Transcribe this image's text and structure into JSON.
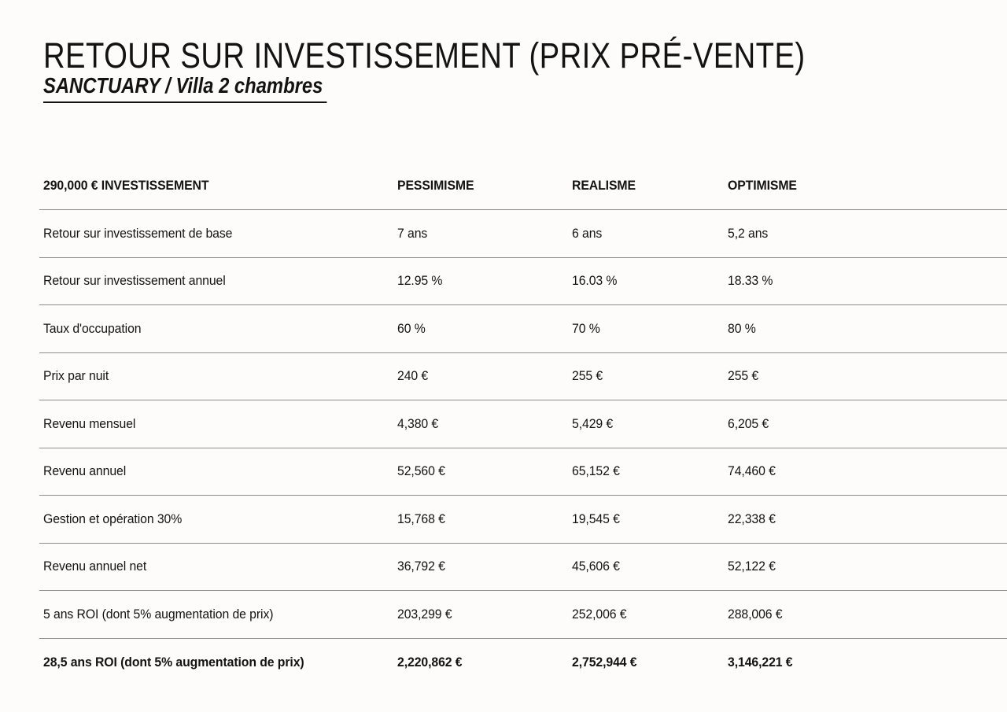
{
  "theme": {
    "bg": "#fdfcfa",
    "ink": "#131313",
    "line": "#8e8e8e"
  },
  "page": {
    "title": "RETOUR SUR INVESTISSEMENT (PRIX PRÉ-VENTE)",
    "subtitle": "SANCTUARY / Villa 2 chambres"
  },
  "table": {
    "columns": [
      "290,000 € INVESTISSEMENT",
      "PESSIMISME",
      "REALISME",
      "OPTIMISME"
    ],
    "rows": [
      {
        "label": "Retour sur investissement de base",
        "pessimisme": "7 ans",
        "realisme": "6 ans",
        "optimisme": "5,2 ans"
      },
      {
        "label": "Retour sur investissement annuel",
        "pessimisme": "12.95 %",
        "realisme": "16.03 %",
        "optimisme": "18.33 %"
      },
      {
        "label": "Taux d'occupation",
        "pessimisme": "60 %",
        "realisme": "70 %",
        "optimisme": "80 %"
      },
      {
        "label": "Prix par nuit",
        "pessimisme": "240 €",
        "realisme": "255 €",
        "optimisme": "255 €"
      },
      {
        "label": "Revenu mensuel",
        "pessimisme": "4,380 €",
        "realisme": "5,429 €",
        "optimisme": "6,205 €"
      },
      {
        "label": "Revenu annuel",
        "pessimisme": "52,560 €",
        "realisme": "65,152 €",
        "optimisme": "74,460 €"
      },
      {
        "label": "Gestion et opération 30%",
        "pessimisme": "15,768 €",
        "realisme": "19,545 €",
        "optimisme": "22,338 €"
      },
      {
        "label": "Revenu annuel net",
        "pessimisme": "36,792 €",
        "realisme": "45,606 €",
        "optimisme": "52,122 €"
      },
      {
        "label": "5 ans ROI (dont 5% augmentation de prix)",
        "pessimisme": "203,299 €",
        "realisme": "252,006 €",
        "optimisme": "288,006 €"
      },
      {
        "label": "28,5 ans ROI (dont 5% augmentation de prix)",
        "pessimisme": "2,220,862 €",
        "realisme": "2,752,944 €",
        "optimisme": "3,146,221 €"
      }
    ]
  }
}
